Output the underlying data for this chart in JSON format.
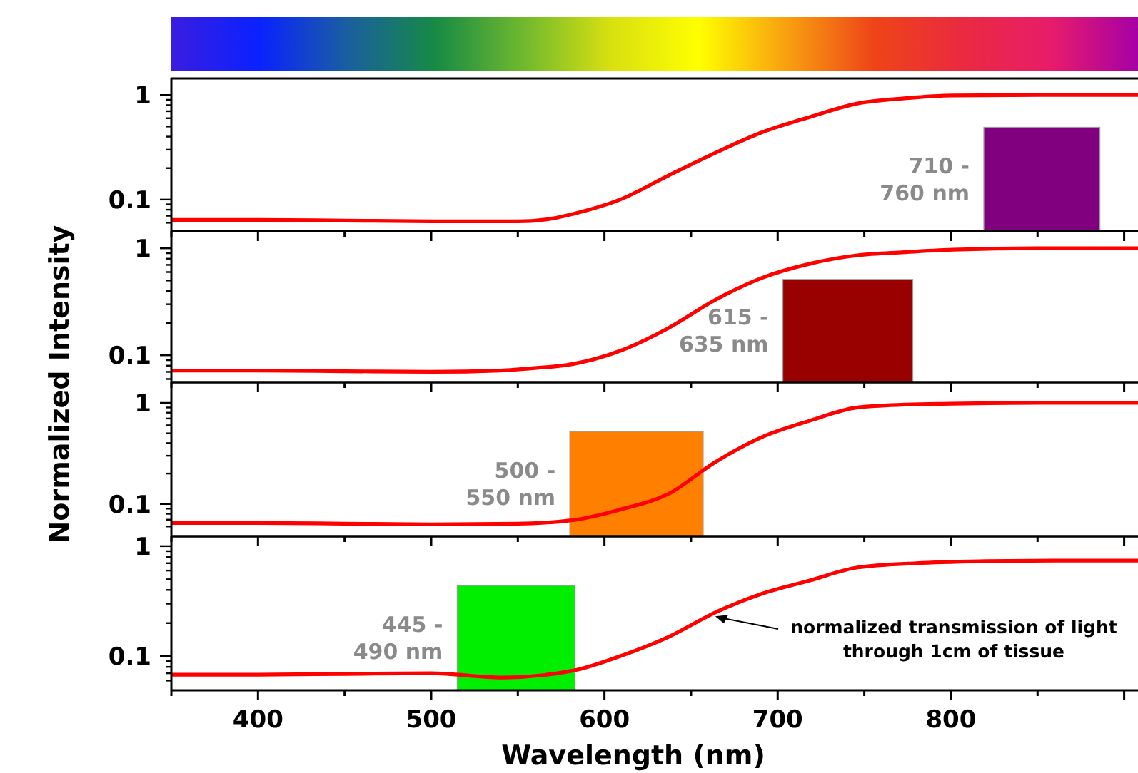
{
  "chart_data": [
    {
      "type": "line",
      "ylabel": "Normalized Intensity",
      "log": "y",
      "tick_labels": "y",
      "xlim": [
        350,
        908
      ],
      "ylim": [
        0.05,
        1.44
      ],
      "xticks": [
        {
          "value": 350,
          "label": null
        },
        {
          "value": 400,
          "label": null
        },
        {
          "value": 450,
          "label": null
        },
        {
          "value": 500,
          "label": null
        },
        {
          "value": 550,
          "label": null
        },
        {
          "value": 600,
          "label": null
        },
        {
          "value": 650,
          "label": null
        },
        {
          "value": 700,
          "label": null
        },
        {
          "value": 750,
          "label": null
        },
        {
          "value": 800,
          "label": null
        },
        {
          "value": 850,
          "label": null
        },
        {
          "value": 900,
          "label": null
        }
      ],
      "yticks": [
        {
          "value": 0.06,
          "label": null
        },
        {
          "value": 0.07,
          "label": null
        },
        {
          "value": 0.08,
          "label": null
        },
        {
          "value": 0.09,
          "label": null
        },
        {
          "value": 0.1,
          "label": "0.1"
        },
        {
          "value": 0.2,
          "label": null
        },
        {
          "value": 0.3,
          "label": null
        },
        {
          "value": 0.4,
          "label": null
        },
        {
          "value": 0.5,
          "label": null
        },
        {
          "value": 0.6,
          "label": null
        },
        {
          "value": 0.7,
          "label": null
        },
        {
          "value": 0.8,
          "label": null
        },
        {
          "value": 0.9,
          "label": null
        },
        {
          "value": 1,
          "label": "1"
        }
      ],
      "series": [
        {
          "color": "#ff0000",
          "x": [
            350,
            400,
            450,
            500,
            550,
            570,
            582,
            609,
            637,
            664,
            691,
            719,
            746,
            773,
            801,
            850,
            908
          ],
          "values": [
            0.064,
            0.064,
            0.063,
            0.062,
            0.062,
            0.066,
            0.073,
            0.1,
            0.17,
            0.28,
            0.44,
            0.62,
            0.83,
            0.93,
            0.99,
            1.0,
            1.0
          ]
        }
      ],
      "bands": [
        {
          "axis": "x",
          "from": 819,
          "to": 886,
          "color": "#800080",
          "label": "710 - 760 nm"
        }
      ]
    },
    {
      "type": "line",
      "log": "y",
      "tick_labels": "y",
      "xlim": [
        350,
        908
      ],
      "ylim": [
        0.056,
        1.45
      ],
      "xticks": [
        {
          "value": 350,
          "label": null
        },
        {
          "value": 400,
          "label": null
        },
        {
          "value": 450,
          "label": null
        },
        {
          "value": 500,
          "label": null
        },
        {
          "value": 550,
          "label": null
        },
        {
          "value": 600,
          "label": null
        },
        {
          "value": 650,
          "label": null
        },
        {
          "value": 700,
          "label": null
        },
        {
          "value": 750,
          "label": null
        },
        {
          "value": 800,
          "label": null
        },
        {
          "value": 850,
          "label": null
        },
        {
          "value": 900,
          "label": null
        }
      ],
      "yticks": [
        {
          "value": 0.06,
          "label": null
        },
        {
          "value": 0.07,
          "label": null
        },
        {
          "value": 0.08,
          "label": null
        },
        {
          "value": 0.09,
          "label": null
        },
        {
          "value": 0.1,
          "label": "0.1"
        },
        {
          "value": 0.2,
          "label": null
        },
        {
          "value": 0.3,
          "label": null
        },
        {
          "value": 0.4,
          "label": null
        },
        {
          "value": 0.5,
          "label": null
        },
        {
          "value": 0.6,
          "label": null
        },
        {
          "value": 0.7,
          "label": null
        },
        {
          "value": 0.8,
          "label": null
        },
        {
          "value": 0.9,
          "label": null
        },
        {
          "value": 1,
          "label": "1"
        }
      ],
      "series": [
        {
          "color": "#ff0000",
          "x": [
            350,
            400,
            450,
            500,
            540,
            560,
            582,
            609,
            637,
            664,
            691,
            719,
            746,
            773,
            801,
            850,
            908
          ],
          "values": [
            0.072,
            0.072,
            0.071,
            0.07,
            0.072,
            0.076,
            0.083,
            0.11,
            0.18,
            0.33,
            0.53,
            0.72,
            0.86,
            0.92,
            0.97,
            1.0,
            1.0
          ]
        }
      ],
      "bands": [
        {
          "axis": "x",
          "from": 703,
          "to": 778,
          "color": "#990000",
          "label": "615 - 635 nm"
        }
      ]
    },
    {
      "type": "line",
      "log": "y",
      "tick_labels": "y",
      "xlim": [
        350,
        908
      ],
      "ylim": [
        0.048,
        1.6
      ],
      "xticks": [
        {
          "value": 350,
          "label": null
        },
        {
          "value": 400,
          "label": null
        },
        {
          "value": 450,
          "label": null
        },
        {
          "value": 500,
          "label": null
        },
        {
          "value": 550,
          "label": null
        },
        {
          "value": 600,
          "label": null
        },
        {
          "value": 650,
          "label": null
        },
        {
          "value": 700,
          "label": null
        },
        {
          "value": 750,
          "label": null
        },
        {
          "value": 800,
          "label": null
        },
        {
          "value": 850,
          "label": null
        },
        {
          "value": 900,
          "label": null
        }
      ],
      "yticks": [
        {
          "value": 0.06,
          "label": null
        },
        {
          "value": 0.07,
          "label": null
        },
        {
          "value": 0.08,
          "label": null
        },
        {
          "value": 0.09,
          "label": null
        },
        {
          "value": 0.1,
          "label": "0.1"
        },
        {
          "value": 0.2,
          "label": null
        },
        {
          "value": 0.3,
          "label": null
        },
        {
          "value": 0.4,
          "label": null
        },
        {
          "value": 0.5,
          "label": null
        },
        {
          "value": 0.6,
          "label": null
        },
        {
          "value": 0.7,
          "label": null
        },
        {
          "value": 0.8,
          "label": null
        },
        {
          "value": 0.9,
          "label": null
        },
        {
          "value": 1,
          "label": "1"
        }
      ],
      "series": [
        {
          "color": "#ff0000",
          "x": [
            350,
            400,
            450,
            500,
            550,
            581,
            609,
            637,
            664,
            691,
            719,
            746,
            773,
            800,
            850,
            908
          ],
          "values": [
            0.065,
            0.065,
            0.064,
            0.063,
            0.064,
            0.069,
            0.088,
            0.126,
            0.26,
            0.46,
            0.67,
            0.9,
            0.96,
            0.98,
            1.0,
            1.0
          ]
        }
      ],
      "bands": [
        {
          "axis": "x",
          "from": 580,
          "to": 657,
          "color": "#ff8000",
          "label": "500 - 550 nm"
        }
      ]
    },
    {
      "type": "line",
      "xlabel": "Wavelength (nm)",
      "log": "y",
      "xlim": [
        350,
        908
      ],
      "ylim": [
        0.049,
        1.23
      ],
      "xticks": [
        {
          "value": 350,
          "label": null
        },
        400,
        {
          "value": 450,
          "label": null
        },
        500,
        {
          "value": 550,
          "label": null
        },
        600,
        {
          "value": 650,
          "label": null
        },
        700,
        {
          "value": 750,
          "label": null
        },
        800,
        {
          "value": 850,
          "label": null
        },
        {
          "value": 900,
          "label": null
        }
      ],
      "yticks": [
        {
          "value": 0.06,
          "label": null
        },
        {
          "value": 0.07,
          "label": null
        },
        {
          "value": 0.08,
          "label": null
        },
        {
          "value": 0.09,
          "label": null
        },
        {
          "value": 0.1,
          "label": "0.1"
        },
        {
          "value": 0.2,
          "label": null
        },
        {
          "value": 0.3,
          "label": null
        },
        {
          "value": 0.4,
          "label": null
        },
        {
          "value": 0.5,
          "label": null
        },
        {
          "value": 0.6,
          "label": null
        },
        {
          "value": 0.7,
          "label": null
        },
        {
          "value": 0.8,
          "label": null
        },
        {
          "value": 0.9,
          "label": null
        },
        {
          "value": 1,
          "label": "1"
        }
      ],
      "series": [
        {
          "color": "#ff0000",
          "x": [
            350,
            400,
            450,
            500,
            541,
            582,
            609,
            637,
            664,
            691,
            719,
            746,
            780,
            820,
            860,
            908
          ],
          "values": [
            0.068,
            0.068,
            0.069,
            0.07,
            0.064,
            0.074,
            0.1,
            0.15,
            0.25,
            0.37,
            0.49,
            0.64,
            0.7,
            0.73,
            0.74,
            0.74
          ]
        }
      ],
      "bands": [
        {
          "axis": "x",
          "from": 515,
          "to": 583,
          "color": "#00ee00",
          "label": "445 - 490 nm"
        }
      ],
      "annotations": [
        {
          "text": "normalized transmission of light through 1cm of tissue",
          "x": 664,
          "y": 0.23
        }
      ]
    }
  ]
}
